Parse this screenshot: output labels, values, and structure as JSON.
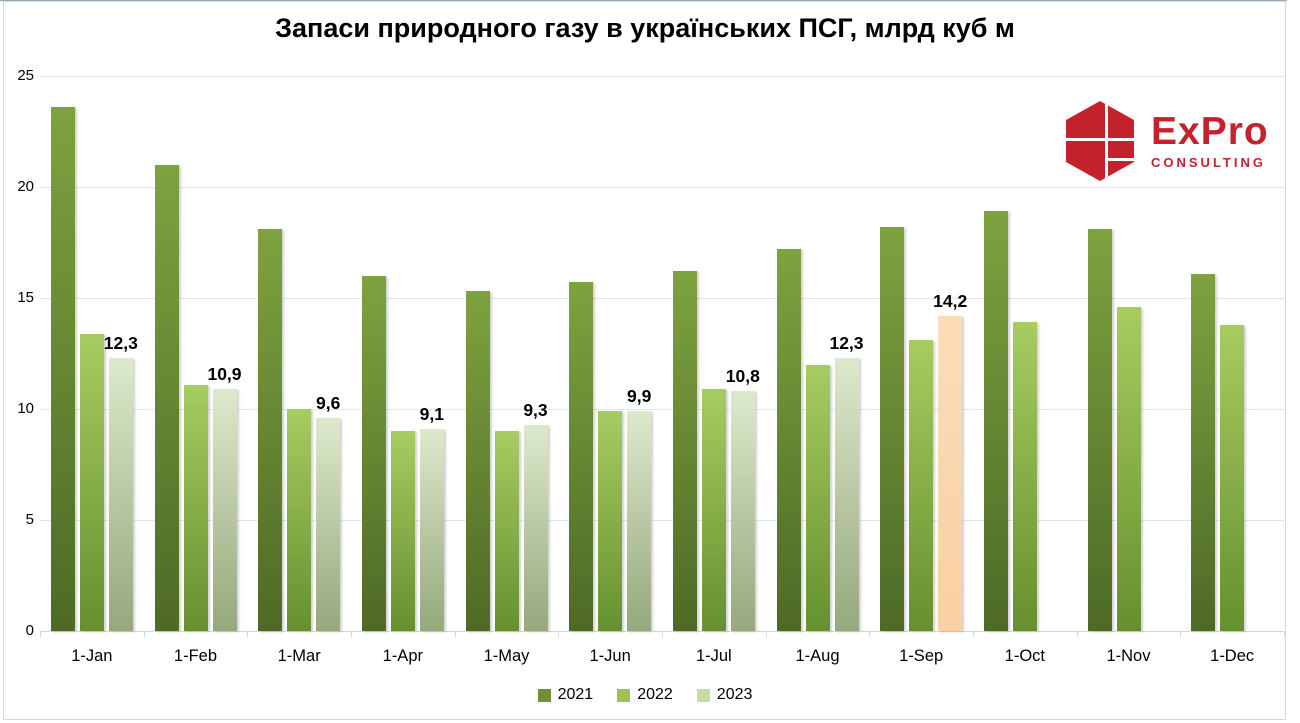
{
  "chart_data": {
    "type": "bar",
    "title": "Запаси природного газу в українських ПСГ, млрд куб м",
    "categories": [
      "1-Jan",
      "1-Feb",
      "1-Mar",
      "1-Apr",
      "1-May",
      "1-Jun",
      "1-Jul",
      "1-Aug",
      "1-Sep",
      "1-Oct",
      "1-Nov",
      "1-Dec"
    ],
    "series": [
      {
        "name": "2021",
        "color_top": "#7ea23f",
        "color_bottom": "#4e6a26",
        "legend_color": "#6f8f33",
        "values": [
          23.6,
          21.0,
          18.1,
          16.0,
          15.3,
          15.7,
          16.2,
          17.2,
          18.2,
          18.9,
          18.1,
          16.1
        ]
      },
      {
        "name": "2022",
        "color_top": "#a7cc60",
        "color_bottom": "#66902f",
        "legend_color": "#9cc355",
        "values": [
          13.4,
          11.1,
          10.0,
          9.0,
          9.0,
          9.9,
          10.9,
          12.0,
          13.1,
          13.9,
          14.6,
          13.8
        ]
      },
      {
        "name": "2023",
        "color_top": "#dde9cc",
        "color_bottom": "#96a87c",
        "legend_color": "#c9d9ad",
        "values": [
          12.3,
          10.9,
          9.6,
          9.1,
          9.3,
          9.9,
          10.8,
          12.3,
          14.2,
          null,
          null,
          null
        ],
        "data_labels": [
          "12,3",
          "10,9",
          "9,6",
          "9,1",
          "9,3",
          "9,9",
          "10,8",
          "12,3",
          "14,2"
        ],
        "highlight": {
          "category_index": 8,
          "color_top": "#fcdcb8",
          "color_bottom": "#f9d0a2"
        }
      }
    ],
    "ylim": [
      0,
      25
    ],
    "yticks": [
      0,
      5,
      10,
      15,
      20,
      25
    ],
    "grid": true,
    "legend_position": "bottom",
    "grid_color": "#dbe7f3"
  },
  "logo": {
    "brand": "ExPro",
    "subtitle": "CONSULTING",
    "color": "#c4232e"
  }
}
